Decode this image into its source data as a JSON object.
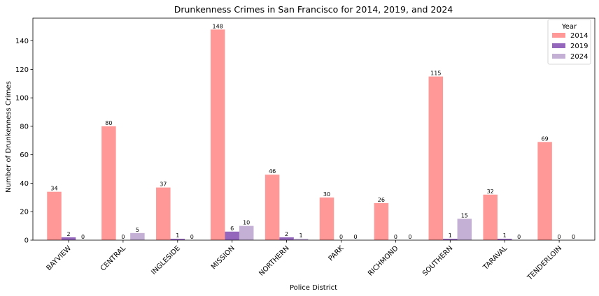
{
  "chart_data": {
    "type": "bar",
    "title": "Drunkenness Crimes in San Francisco for 2014, 2019, and 2024",
    "xlabel": "Police District",
    "ylabel": "Number of Drunkenness Crimes",
    "categories": [
      "BAYVIEW",
      "CENTRAL",
      "INGLESIDE",
      "MISSION",
      "NORTHERN",
      "PARK",
      "RICHMOND",
      "SOUTHERN",
      "TARAVAL",
      "TENDERLOIN"
    ],
    "series": [
      {
        "name": "2014",
        "color": "#ff9896",
        "values": [
          34,
          80,
          37,
          148,
          46,
          30,
          26,
          115,
          32,
          69
        ]
      },
      {
        "name": "2019",
        "color": "#9467bd",
        "values": [
          2,
          0,
          1,
          6,
          2,
          0,
          0,
          1,
          1,
          0
        ]
      },
      {
        "name": "2024",
        "color": "#c5b0d5",
        "values": [
          0,
          5,
          0,
          10,
          1,
          0,
          0,
          15,
          0,
          0
        ]
      }
    ],
    "ylim": [
      0,
      156
    ],
    "yticks": [
      0,
      20,
      40,
      60,
      80,
      100,
      120,
      140
    ],
    "legend": {
      "title": "Year",
      "position": "top-right"
    },
    "grid": false,
    "data_labels": true
  }
}
